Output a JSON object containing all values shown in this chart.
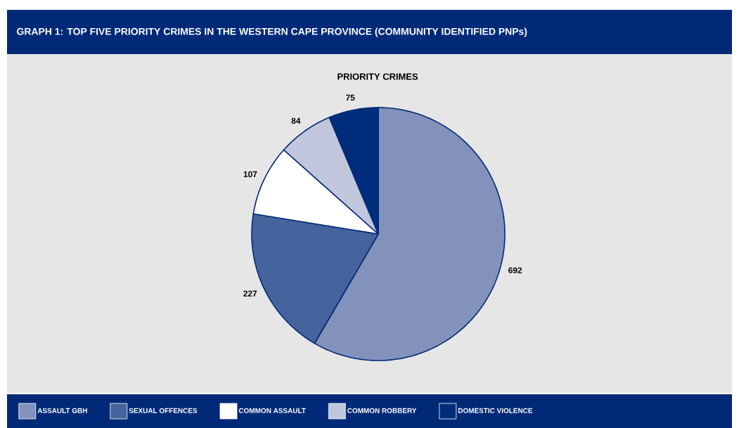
{
  "chart_data": {
    "type": "pie",
    "title": "GRAPH 1: TOP FIVE PRIORITY CRIMES IN THE WESTERN CAPE PROVINCE (COMMUNITY IDENTIFIED PNPs)",
    "subtitle": "PRIORITY CRIMES",
    "categories": [
      "ASSAULT GBH",
      "SEXUAL OFFENCES",
      "COMMON ASSAULT",
      "COMMON ROBBERY",
      "DOMESTIC VIOLENCE"
    ],
    "values": [
      692,
      227,
      107,
      84,
      75
    ],
    "colors": [
      "#8292bb",
      "#45649e",
      "#ffffff",
      "#c0c6dc",
      "#002d7b"
    ],
    "data_labels": true,
    "legend": "bottom"
  }
}
